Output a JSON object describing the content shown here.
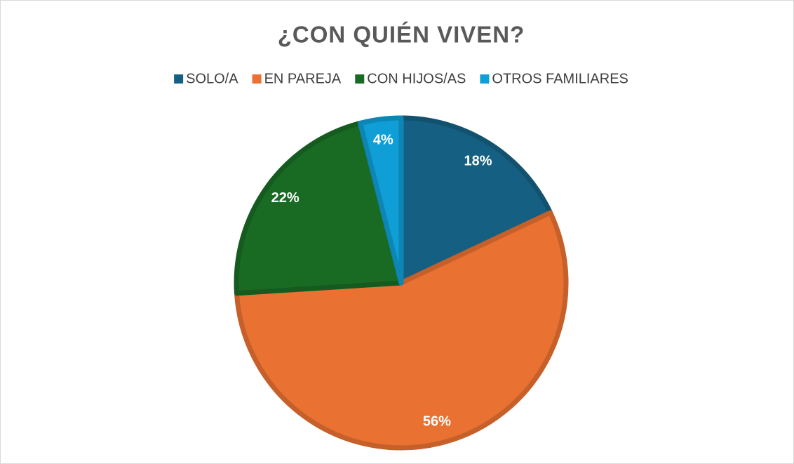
{
  "chart_data": {
    "type": "pie",
    "title": "¿CON QUIÉN VIVEN?",
    "categories": [
      "SOLO/A",
      "EN PAREJA",
      "CON HIJOS/AS",
      "OTROS FAMILIARES"
    ],
    "values": [
      18,
      56,
      22,
      4
    ],
    "value_labels": [
      "18%",
      "56%",
      "22%",
      "4%"
    ],
    "colors": [
      "#156082",
      "#e97132",
      "#196b24",
      "#0f9ed5"
    ],
    "legend": "top"
  }
}
